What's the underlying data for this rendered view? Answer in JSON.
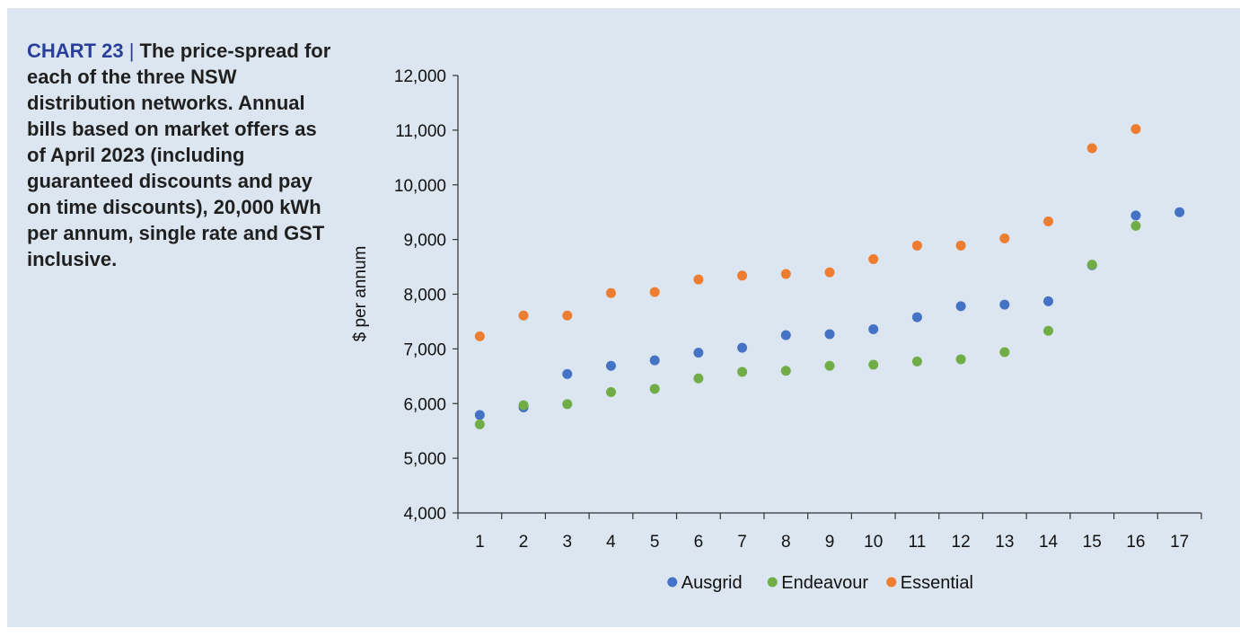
{
  "caption": {
    "lead": "CHART 23",
    "separator": "|",
    "text": "The price-spread for each of the three NSW distribution networks. Annual bills based on market offers as of April 2023 (including guaranteed discounts and pay on time discounts), 20,000 kWh per annum, single rate and GST inclusive."
  },
  "chart_data": {
    "type": "scatter",
    "title": "",
    "xlabel": "",
    "ylabel": "$ per annum",
    "x": [
      1,
      2,
      3,
      4,
      5,
      6,
      7,
      8,
      9,
      10,
      11,
      12,
      13,
      14,
      15,
      16,
      17
    ],
    "x_tick_labels": [
      "1",
      "2",
      "3",
      "4",
      "5",
      "6",
      "7",
      "8",
      "9",
      "10",
      "11",
      "12",
      "13",
      "14",
      "15",
      "16",
      "17"
    ],
    "ylim": [
      4000,
      12000
    ],
    "y_ticks": [
      4000,
      5000,
      6000,
      7000,
      8000,
      9000,
      10000,
      11000,
      12000
    ],
    "y_tick_labels": [
      "4,000",
      "5,000",
      "6,000",
      "7,000",
      "8,000",
      "9,000",
      "10,000",
      "11,000",
      "12,000"
    ],
    "grid": false,
    "legend_position": "bottom",
    "series": [
      {
        "name": "Ausgrid",
        "color": "#4472c4",
        "points": [
          [
            1,
            5790
          ],
          [
            2,
            5930
          ],
          [
            3,
            6540
          ],
          [
            4,
            6690
          ],
          [
            5,
            6790
          ],
          [
            6,
            6930
          ],
          [
            7,
            7020
          ],
          [
            8,
            7250
          ],
          [
            9,
            7270
          ],
          [
            10,
            7360
          ],
          [
            11,
            7580
          ],
          [
            12,
            7780
          ],
          [
            13,
            7810
          ],
          [
            14,
            7870
          ],
          [
            15,
            8530
          ],
          [
            16,
            9440
          ],
          [
            17,
            9500
          ]
        ]
      },
      {
        "name": "Endeavour",
        "color": "#70ad47",
        "points": [
          [
            1,
            5620
          ],
          [
            2,
            5970
          ],
          [
            3,
            5990
          ],
          [
            4,
            6210
          ],
          [
            5,
            6270
          ],
          [
            6,
            6460
          ],
          [
            7,
            6580
          ],
          [
            8,
            6600
          ],
          [
            9,
            6690
          ],
          [
            10,
            6710
          ],
          [
            11,
            6770
          ],
          [
            12,
            6810
          ],
          [
            13,
            6940
          ],
          [
            14,
            7330
          ],
          [
            15,
            8540
          ],
          [
            16,
            9250
          ]
        ]
      },
      {
        "name": "Essential",
        "color": "#ed7d31",
        "points": [
          [
            1,
            7230
          ],
          [
            2,
            7610
          ],
          [
            3,
            7610
          ],
          [
            4,
            8020
          ],
          [
            5,
            8040
          ],
          [
            6,
            8270
          ],
          [
            7,
            8340
          ],
          [
            8,
            8370
          ],
          [
            9,
            8400
          ],
          [
            10,
            8640
          ],
          [
            11,
            8890
          ],
          [
            12,
            8890
          ],
          [
            13,
            9020
          ],
          [
            14,
            9330
          ],
          [
            15,
            10670
          ],
          [
            16,
            11020
          ]
        ]
      }
    ]
  }
}
